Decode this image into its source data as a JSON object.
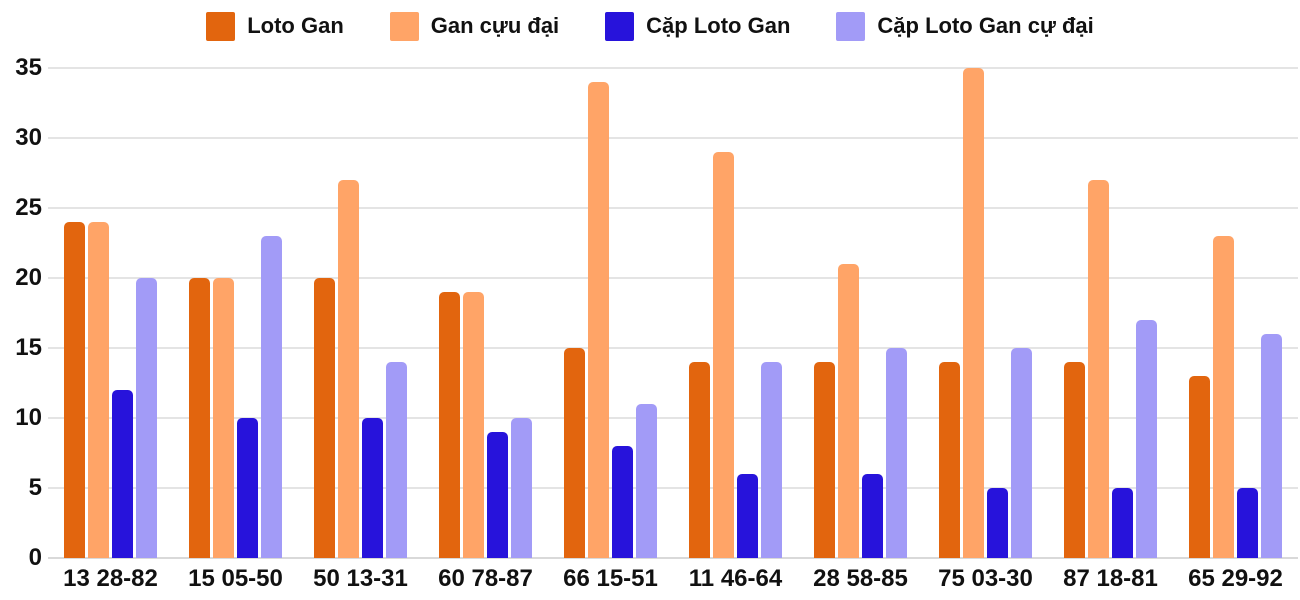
{
  "chart_data": {
    "type": "bar",
    "title": "",
    "xlabel": "",
    "ylabel": "",
    "categories": [
      "13 28-82",
      "15 05-50",
      "50 13-31",
      "60 78-87",
      "66 15-51",
      "11 46-64",
      "28 58-85",
      "75 03-30",
      "87 18-81",
      "65 29-92"
    ],
    "series": [
      {
        "name": "Loto Gan",
        "color": "#e2650e",
        "values": [
          24,
          20,
          20,
          19,
          15,
          14,
          14,
          14,
          14,
          13
        ]
      },
      {
        "name": "Gan cựu đại",
        "color": "#ffa467",
        "values": [
          24,
          20,
          27,
          19,
          34,
          29,
          21,
          35,
          27,
          23
        ]
      },
      {
        "name": "Cặp Loto Gan",
        "color": "#2713db",
        "values": [
          12,
          10,
          10,
          9,
          8,
          6,
          6,
          5,
          5,
          5
        ]
      },
      {
        "name": "Cặp Loto Gan cự đại",
        "color": "#a29bf7",
        "values": [
          20,
          23,
          14,
          10,
          11,
          14,
          15,
          15,
          17,
          16
        ]
      }
    ],
    "ylim": [
      0,
      35
    ],
    "yticks": [
      0,
      5,
      10,
      15,
      20,
      25,
      30,
      35
    ],
    "grid": "horizontal",
    "legend_position": "top",
    "text_color": "#111111",
    "gridline_color": "#e4e4e4",
    "background_color": "#ffffff"
  }
}
